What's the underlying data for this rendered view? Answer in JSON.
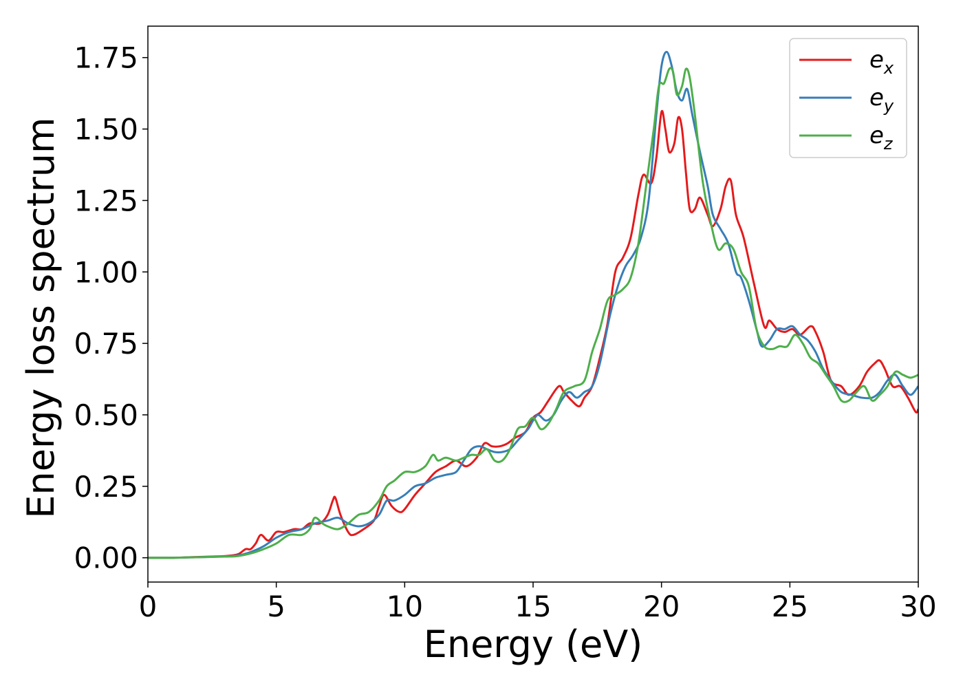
{
  "chart_data": {
    "type": "line",
    "xlabel": "Energy (eV)",
    "ylabel": "Energy loss spectrum",
    "xlim": [
      0,
      30
    ],
    "ylim": [
      -0.085,
      1.86
    ],
    "xticks": [
      0,
      5,
      10,
      15,
      20,
      25,
      30
    ],
    "xtick_labels": [
      "0",
      "5",
      "10",
      "15",
      "20",
      "25",
      "30"
    ],
    "yticks": [
      0.0,
      0.25,
      0.5,
      0.75,
      1.0,
      1.25,
      1.5,
      1.75
    ],
    "ytick_labels": [
      "0.00",
      "0.25",
      "0.50",
      "0.75",
      "1.00",
      "1.25",
      "1.50",
      "1.75"
    ],
    "grid": false,
    "legend_position": "top-right",
    "series": [
      {
        "name": "e_x",
        "label_main": "e",
        "label_sub": "x",
        "color": "#e41a1c",
        "x": [
          0,
          1,
          2,
          3,
          3.5,
          3.8,
          4.0,
          4.2,
          4.4,
          4.7,
          5.0,
          5.3,
          5.7,
          6.0,
          6.3,
          6.7,
          7.0,
          7.2,
          7.3,
          7.5,
          7.8,
          8.0,
          8.4,
          8.8,
          9.0,
          9.2,
          9.5,
          9.8,
          10.0,
          10.4,
          10.8,
          11.2,
          11.6,
          12.0,
          12.4,
          12.8,
          13.1,
          13.4,
          13.7,
          14.0,
          14.3,
          14.7,
          15.0,
          15.3,
          15.6,
          16.0,
          16.2,
          16.5,
          16.8,
          17.0,
          17.3,
          17.6,
          17.9,
          18.2,
          18.5,
          18.8,
          19.1,
          19.3,
          19.6,
          19.8,
          20.0,
          20.15,
          20.3,
          20.5,
          20.65,
          20.8,
          20.95,
          21.1,
          21.3,
          21.5,
          21.8,
          22.0,
          22.3,
          22.5,
          22.7,
          22.9,
          23.2,
          23.6,
          24.0,
          24.2,
          24.5,
          24.8,
          25.1,
          25.4,
          25.8,
          26.0,
          26.3,
          26.6,
          27.0,
          27.3,
          27.7,
          28.0,
          28.3,
          28.5,
          28.7,
          29.0,
          29.3,
          29.6,
          29.9,
          30.0
        ],
        "values": [
          0.0,
          0.0,
          0.003,
          0.006,
          0.012,
          0.03,
          0.03,
          0.05,
          0.08,
          0.06,
          0.09,
          0.09,
          0.1,
          0.1,
          0.12,
          0.12,
          0.15,
          0.2,
          0.21,
          0.15,
          0.09,
          0.08,
          0.1,
          0.13,
          0.18,
          0.22,
          0.18,
          0.16,
          0.17,
          0.22,
          0.26,
          0.3,
          0.32,
          0.34,
          0.32,
          0.35,
          0.4,
          0.39,
          0.39,
          0.4,
          0.42,
          0.44,
          0.49,
          0.51,
          0.55,
          0.6,
          0.58,
          0.55,
          0.53,
          0.56,
          0.6,
          0.7,
          0.82,
          1.0,
          1.05,
          1.12,
          1.27,
          1.34,
          1.31,
          1.4,
          1.56,
          1.5,
          1.42,
          1.45,
          1.54,
          1.5,
          1.35,
          1.22,
          1.22,
          1.26,
          1.2,
          1.16,
          1.22,
          1.3,
          1.32,
          1.2,
          1.12,
          0.96,
          0.81,
          0.83,
          0.8,
          0.79,
          0.8,
          0.78,
          0.81,
          0.79,
          0.72,
          0.62,
          0.6,
          0.57,
          0.6,
          0.65,
          0.68,
          0.69,
          0.66,
          0.6,
          0.6,
          0.56,
          0.51,
          0.52
        ]
      },
      {
        "name": "e_y",
        "label_main": "e",
        "label_sub": "y",
        "color": "#377eb8",
        "x": [
          0,
          1,
          2,
          3,
          3.5,
          4.0,
          4.5,
          5.0,
          5.5,
          6.0,
          6.5,
          7.0,
          7.4,
          7.8,
          8.2,
          8.6,
          9.0,
          9.3,
          9.6,
          10.0,
          10.4,
          10.8,
          11.2,
          11.6,
          12.0,
          12.3,
          12.6,
          12.9,
          13.2,
          13.5,
          13.8,
          14.1,
          14.4,
          14.8,
          15.0,
          15.2,
          15.5,
          15.8,
          16.1,
          16.4,
          16.7,
          17.0,
          17.3,
          17.6,
          18.0,
          18.3,
          18.6,
          18.9,
          19.2,
          19.5,
          19.8,
          20.0,
          20.2,
          20.4,
          20.6,
          20.8,
          21.0,
          21.2,
          21.5,
          21.8,
          22.0,
          22.3,
          22.6,
          22.9,
          23.1,
          23.4,
          23.7,
          23.9,
          24.2,
          24.5,
          24.8,
          25.1,
          25.4,
          25.7,
          26.0,
          26.3,
          26.6,
          27.0,
          27.4,
          27.8,
          28.2,
          28.5,
          28.8,
          29.1,
          29.4,
          29.7,
          30.0
        ],
        "values": [
          0.0,
          0.0,
          0.002,
          0.005,
          0.008,
          0.02,
          0.04,
          0.07,
          0.09,
          0.1,
          0.12,
          0.13,
          0.14,
          0.12,
          0.11,
          0.12,
          0.15,
          0.2,
          0.2,
          0.22,
          0.25,
          0.26,
          0.28,
          0.29,
          0.3,
          0.34,
          0.38,
          0.39,
          0.38,
          0.37,
          0.37,
          0.38,
          0.41,
          0.45,
          0.48,
          0.5,
          0.48,
          0.5,
          0.55,
          0.58,
          0.56,
          0.58,
          0.6,
          0.68,
          0.85,
          0.95,
          1.02,
          1.06,
          1.12,
          1.25,
          1.55,
          1.72,
          1.77,
          1.72,
          1.63,
          1.6,
          1.64,
          1.55,
          1.42,
          1.3,
          1.2,
          1.15,
          1.1,
          1.0,
          0.98,
          0.9,
          0.8,
          0.74,
          0.76,
          0.8,
          0.8,
          0.81,
          0.78,
          0.76,
          0.72,
          0.66,
          0.62,
          0.58,
          0.57,
          0.56,
          0.56,
          0.58,
          0.62,
          0.64,
          0.6,
          0.57,
          0.6
        ]
      },
      {
        "name": "e_z",
        "label_main": "e",
        "label_sub": "z",
        "color": "#4daf4a",
        "x": [
          0,
          1,
          2,
          3,
          3.5,
          4.0,
          4.5,
          5.0,
          5.5,
          6.0,
          6.3,
          6.5,
          6.8,
          7.0,
          7.4,
          7.8,
          8.2,
          8.6,
          9.0,
          9.3,
          9.6,
          10.0,
          10.4,
          10.8,
          11.1,
          11.3,
          11.6,
          12.0,
          12.3,
          12.6,
          12.9,
          13.2,
          13.5,
          13.8,
          14.1,
          14.4,
          14.7,
          15.0,
          15.3,
          15.6,
          15.9,
          16.2,
          16.6,
          17.0,
          17.3,
          17.6,
          17.9,
          18.2,
          18.5,
          18.8,
          19.1,
          19.4,
          19.7,
          19.9,
          20.1,
          20.3,
          20.45,
          20.6,
          20.8,
          20.95,
          21.1,
          21.3,
          21.6,
          21.9,
          22.2,
          22.5,
          22.8,
          23.1,
          23.4,
          23.7,
          24.0,
          24.3,
          24.6,
          24.9,
          25.2,
          25.5,
          25.8,
          26.1,
          26.4,
          26.7,
          27.0,
          27.3,
          27.6,
          27.9,
          28.2,
          28.5,
          28.8,
          29.1,
          29.4,
          29.7,
          30.0
        ],
        "values": [
          0.0,
          0.0,
          0.002,
          0.004,
          0.006,
          0.015,
          0.03,
          0.05,
          0.08,
          0.08,
          0.1,
          0.14,
          0.12,
          0.11,
          0.1,
          0.12,
          0.15,
          0.16,
          0.2,
          0.25,
          0.27,
          0.3,
          0.3,
          0.32,
          0.36,
          0.34,
          0.35,
          0.34,
          0.35,
          0.36,
          0.36,
          0.38,
          0.34,
          0.34,
          0.38,
          0.45,
          0.46,
          0.49,
          0.45,
          0.47,
          0.52,
          0.58,
          0.6,
          0.62,
          0.72,
          0.8,
          0.9,
          0.92,
          0.94,
          0.98,
          1.1,
          1.3,
          1.5,
          1.65,
          1.66,
          1.71,
          1.7,
          1.62,
          1.65,
          1.71,
          1.68,
          1.55,
          1.32,
          1.18,
          1.08,
          1.1,
          1.08,
          1.0,
          0.95,
          0.8,
          0.74,
          0.73,
          0.74,
          0.74,
          0.78,
          0.75,
          0.7,
          0.68,
          0.64,
          0.6,
          0.55,
          0.55,
          0.58,
          0.6,
          0.55,
          0.57,
          0.6,
          0.65,
          0.64,
          0.63,
          0.64
        ]
      }
    ]
  }
}
